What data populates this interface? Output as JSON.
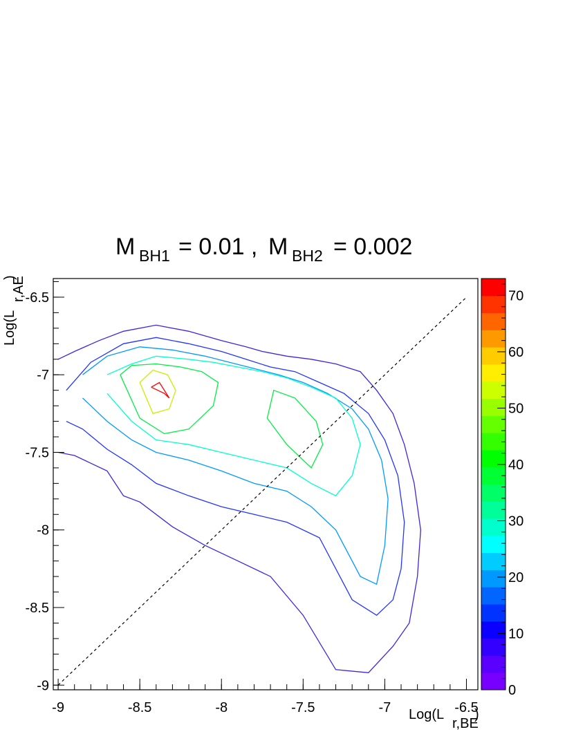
{
  "chart_data": {
    "type": "contour",
    "title": {
      "m1_base": "M",
      "m1_sub": "BH1",
      "m1_value": "= 0.01 ,",
      "m2_base": "M",
      "m2_sub": "BH2",
      "m2_value": "= 0.002"
    },
    "xlabel": {
      "base": "Log(L",
      "sub": "r,BE",
      "close": ")"
    },
    "ylabel": {
      "base": "Log(L",
      "sub": "r,AE",
      "close": ")"
    },
    "xlim": [
      -9.03,
      -6.43
    ],
    "ylim": [
      -9.03,
      -6.38
    ],
    "x_ticks": [
      {
        "value": -9,
        "label": "-9"
      },
      {
        "value": -8.5,
        "label": "-8.5"
      },
      {
        "value": -8,
        "label": "-8"
      },
      {
        "value": -7.5,
        "label": "-7.5"
      },
      {
        "value": -7,
        "label": "-7"
      },
      {
        "value": -6.5,
        "label": "-6.5"
      }
    ],
    "y_ticks": [
      {
        "value": -9,
        "label": "-9"
      },
      {
        "value": -8.5,
        "label": "-8.5"
      },
      {
        "value": -8,
        "label": "-8"
      },
      {
        "value": -7.5,
        "label": "-7.5"
      },
      {
        "value": -7,
        "label": "-7"
      },
      {
        "value": -6.5,
        "label": "-6.5"
      }
    ],
    "colorbar": {
      "range": [
        0,
        73
      ],
      "ticks": [
        {
          "value": 0,
          "label": "0"
        },
        {
          "value": 10,
          "label": "10"
        },
        {
          "value": 20,
          "label": "20"
        },
        {
          "value": 30,
          "label": "30"
        },
        {
          "value": 40,
          "label": "40"
        },
        {
          "value": 50,
          "label": "50"
        },
        {
          "value": 60,
          "label": "60"
        },
        {
          "value": 70,
          "label": "70"
        }
      ],
      "colors": [
        "#7700ff",
        "#5a00ff",
        "#3300ff",
        "#0a00ff",
        "#0033ff",
        "#0066ff",
        "#0099ff",
        "#00ccff",
        "#00ffff",
        "#00ffcc",
        "#00ff99",
        "#00ff66",
        "#00ff33",
        "#00ff00",
        "#33ff00",
        "#66ff00",
        "#99ff00",
        "#ccff00",
        "#ffee00",
        "#ffcc00",
        "#ff9900",
        "#ff6600",
        "#ff3300",
        "#ff0000"
      ]
    },
    "reference_line": {
      "x": [
        -9,
        -6.5
      ],
      "y": [
        -9,
        -6.5
      ]
    },
    "contours": [
      {
        "level": 4,
        "color": "#4422dd",
        "x": [
          -9.0,
          -8.9,
          -8.7,
          -8.6,
          -8.5,
          -8.3,
          -8.1,
          -7.9,
          -7.7,
          -7.5,
          -7.3,
          -7.1,
          -6.95,
          -6.85,
          -6.8,
          -6.78,
          -6.82,
          -6.88,
          -6.95,
          -7.05,
          -7.15,
          -7.3,
          -7.45,
          -7.6,
          -7.75,
          -7.85,
          -8.0,
          -8.2,
          -8.4,
          -8.6,
          -8.75,
          -8.9,
          -9.0
        ],
        "y": [
          -7.5,
          -7.52,
          -7.62,
          -7.78,
          -7.82,
          -7.98,
          -8.1,
          -8.2,
          -8.3,
          -8.55,
          -8.9,
          -8.92,
          -8.75,
          -8.6,
          -8.3,
          -8.0,
          -7.7,
          -7.45,
          -7.25,
          -7.1,
          -6.98,
          -6.93,
          -6.9,
          -6.88,
          -6.85,
          -6.82,
          -6.78,
          -6.72,
          -6.68,
          -6.72,
          -6.78,
          -6.85,
          -6.9
        ]
      },
      {
        "level": 8,
        "color": "#2233ff",
        "x": [
          -8.95,
          -8.85,
          -8.7,
          -8.55,
          -8.4,
          -8.2,
          -8.0,
          -7.8,
          -7.6,
          -7.4,
          -7.2,
          -7.05,
          -6.95,
          -6.9,
          -6.88,
          -6.92,
          -7.0,
          -7.1,
          -7.25,
          -7.4,
          -7.55,
          -7.7,
          -7.85,
          -8.0,
          -8.2,
          -8.4,
          -8.6,
          -8.8,
          -8.95
        ],
        "y": [
          -7.3,
          -7.35,
          -7.48,
          -7.58,
          -7.7,
          -7.78,
          -7.85,
          -7.9,
          -7.95,
          -8.05,
          -8.45,
          -8.55,
          -8.45,
          -8.25,
          -7.95,
          -7.65,
          -7.42,
          -7.25,
          -7.12,
          -7.05,
          -6.98,
          -6.95,
          -6.9,
          -6.85,
          -6.8,
          -6.76,
          -6.8,
          -6.92,
          -7.1
        ]
      },
      {
        "level": 16,
        "color": "#0099ff",
        "x": [
          -8.85,
          -8.7,
          -8.55,
          -8.4,
          -8.2,
          -8.0,
          -7.8,
          -7.6,
          -7.45,
          -7.3,
          -7.15,
          -7.05,
          -7.0,
          -6.98,
          -7.02,
          -7.1,
          -7.2,
          -7.35,
          -7.5,
          -7.65,
          -7.8,
          -7.95,
          -8.1,
          -8.3,
          -8.5,
          -8.7,
          -8.85
        ],
        "y": [
          -7.15,
          -7.3,
          -7.42,
          -7.5,
          -7.55,
          -7.62,
          -7.7,
          -7.75,
          -7.85,
          -8.0,
          -8.3,
          -8.35,
          -8.1,
          -7.8,
          -7.55,
          -7.35,
          -7.22,
          -7.12,
          -7.05,
          -7.0,
          -6.96,
          -6.92,
          -6.88,
          -6.84,
          -6.82,
          -6.88,
          -7.0
        ]
      },
      {
        "level": 28,
        "color": "#00ffcc",
        "x": [
          -8.7,
          -8.55,
          -8.4,
          -8.2,
          -8.0,
          -7.8,
          -7.6,
          -7.45,
          -7.3,
          -7.2,
          -7.15,
          -7.2,
          -7.3,
          -7.45,
          -7.6,
          -7.75,
          -7.9,
          -8.05,
          -8.2,
          -8.4,
          -8.55,
          -8.7
        ],
        "y": [
          -7.12,
          -7.3,
          -7.42,
          -7.45,
          -7.5,
          -7.55,
          -7.6,
          -7.7,
          -7.78,
          -7.65,
          -7.45,
          -7.28,
          -7.15,
          -7.08,
          -7.02,
          -6.98,
          -6.95,
          -6.92,
          -6.9,
          -6.88,
          -6.93,
          -7.0
        ]
      },
      {
        "level": 40,
        "color": "#00ee44",
        "x": [
          -8.62,
          -8.5,
          -8.35,
          -8.2,
          -8.05,
          -8.02,
          -8.12,
          -8.25,
          -8.4,
          -8.55,
          -8.62
        ],
        "y": [
          -7.0,
          -7.28,
          -7.38,
          -7.35,
          -7.2,
          -7.05,
          -6.98,
          -6.95,
          -6.93,
          -6.94,
          -7.0
        ]
      },
      {
        "level": 40,
        "color": "#00ee44",
        "x": [
          -7.72,
          -7.6,
          -7.45,
          -7.38,
          -7.42,
          -7.55,
          -7.68,
          -7.72
        ],
        "y": [
          -7.28,
          -7.45,
          -7.6,
          -7.45,
          -7.3,
          -7.15,
          -7.1,
          -7.28
        ]
      },
      {
        "level": 56,
        "color": "#ccee00",
        "x": [
          -8.5,
          -8.42,
          -8.32,
          -8.28,
          -8.33,
          -8.42,
          -8.5
        ],
        "y": [
          -7.05,
          -7.25,
          -7.22,
          -7.1,
          -7.0,
          -6.97,
          -7.05
        ]
      },
      {
        "level": 70,
        "color": "#ff0000",
        "x": [
          -8.43,
          -8.35,
          -8.32,
          -8.38,
          -8.43
        ],
        "y": [
          -7.08,
          -7.12,
          -7.15,
          -7.05,
          -7.08
        ]
      }
    ]
  }
}
